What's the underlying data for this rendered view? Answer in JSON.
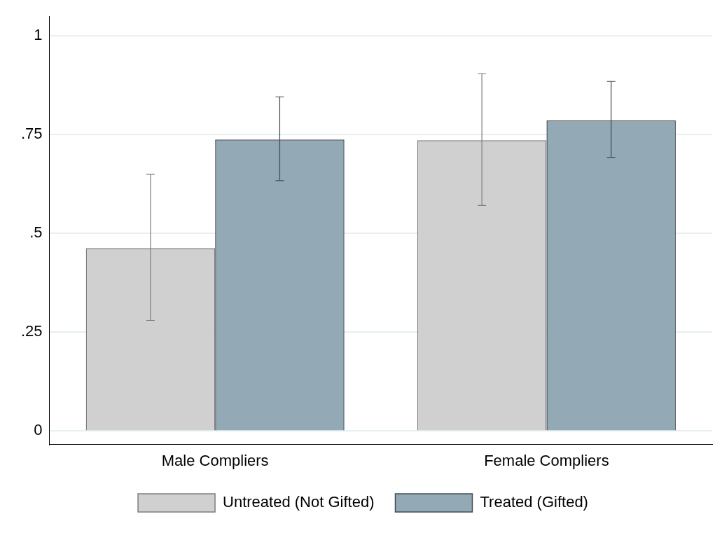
{
  "chart_data": {
    "type": "bar",
    "categories": [
      "Male Compliers",
      "Female Compliers"
    ],
    "series": [
      {
        "name": "Untreated (Not Gifted)",
        "color": "#d0d0d0",
        "values": [
          0.463,
          0.736
        ],
        "errors": [
          [
            0.28,
            0.65
          ],
          [
            0.571,
            0.905
          ]
        ]
      },
      {
        "name": "Treated (Gifted)",
        "color": "#93a9b6",
        "values": [
          0.738,
          0.786
        ],
        "errors": [
          [
            0.634,
            0.846
          ],
          [
            0.693,
            0.885
          ]
        ]
      }
    ],
    "ylim": [
      -0.034,
      1.05
    ],
    "yticks": [
      0,
      {
        "value": 0.25,
        "label": ".25"
      },
      {
        "value": 0.5,
        "label": ".5"
      },
      {
        "value": 0.75,
        "label": ".75"
      },
      1
    ],
    "grid": "y",
    "legend": "bottom"
  }
}
